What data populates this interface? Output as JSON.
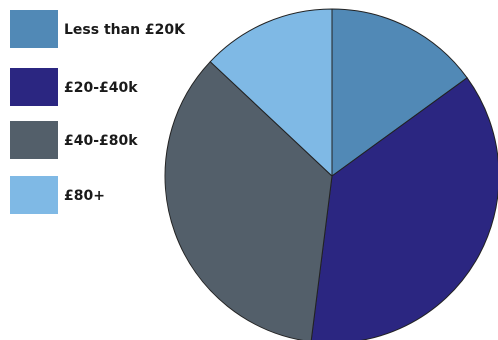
{
  "chart_data": {
    "type": "pie",
    "title": "",
    "categories": [
      "Less than £20K",
      "£20-£40k",
      "£40-£80k",
      "£80+"
    ],
    "values": [
      15,
      37,
      35,
      13
    ],
    "colors": [
      "#5189b6",
      "#2b2681",
      "#535f6a",
      "#7fb9e5"
    ],
    "legend_position": "top-left",
    "slice_border_color": "#222222"
  }
}
